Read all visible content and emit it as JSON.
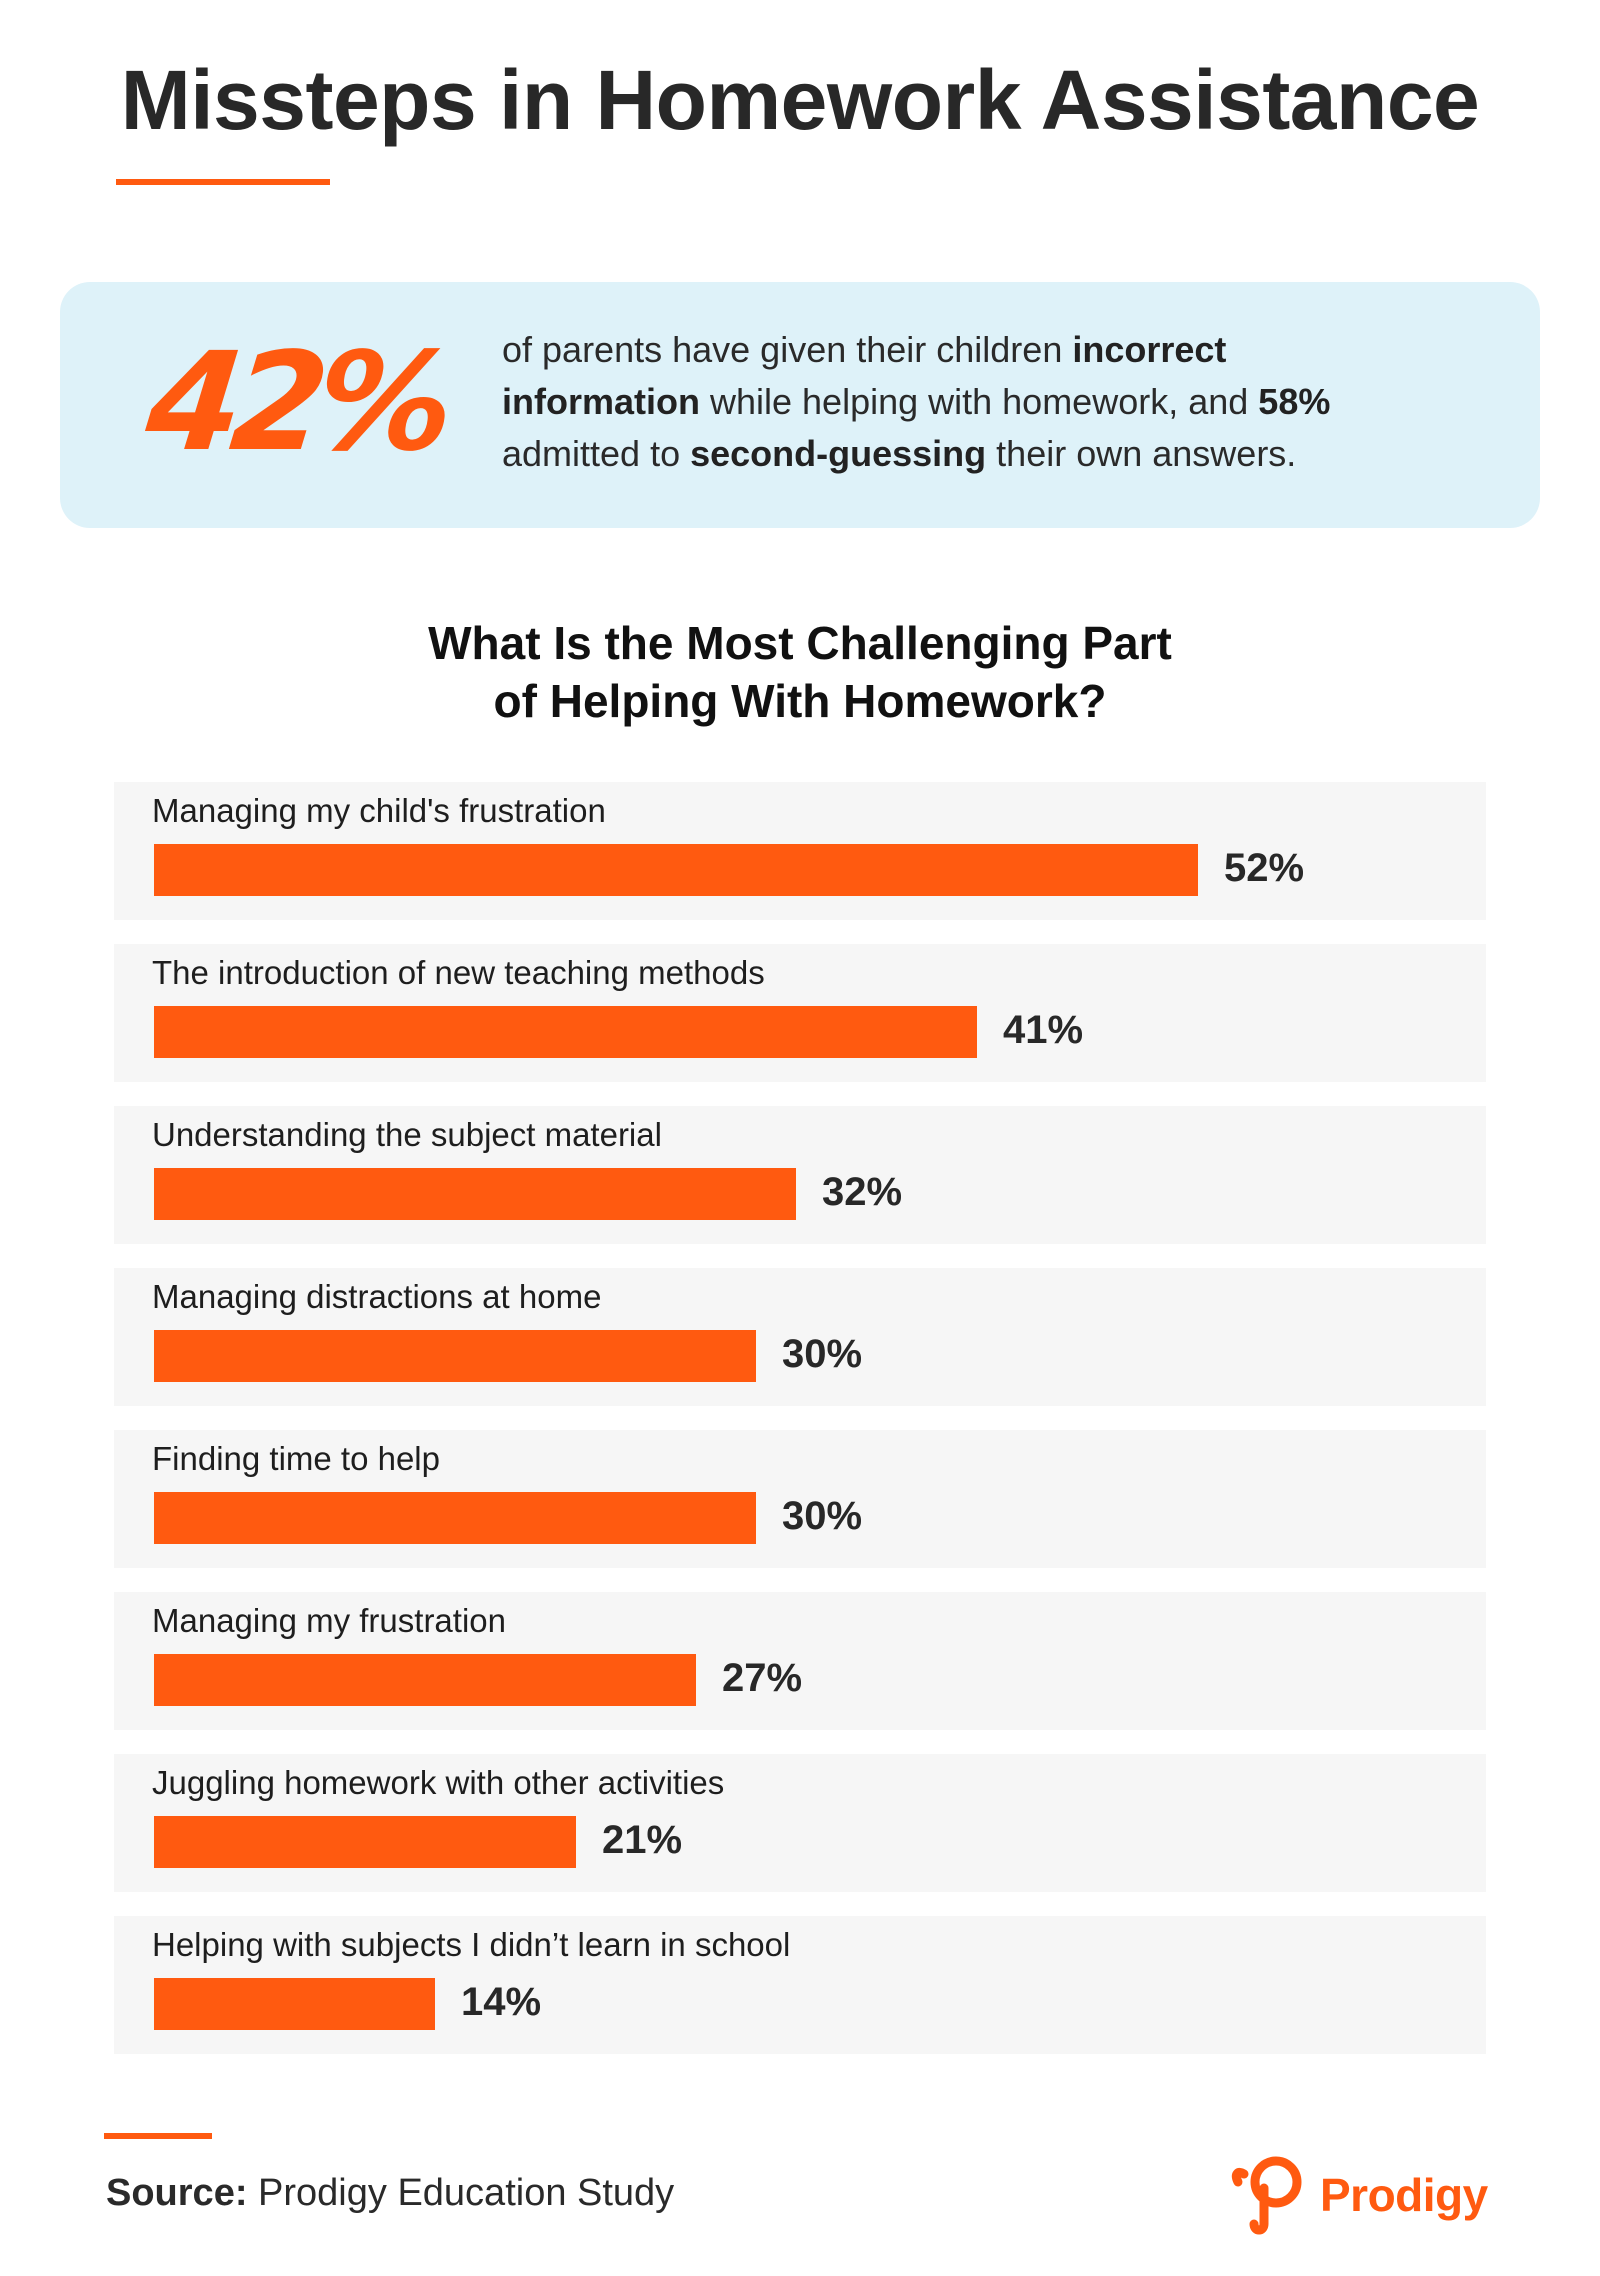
{
  "title": "Missteps in Homework Assistance",
  "callout": {
    "stat": "42%",
    "line1_a": "of parents have given their children ",
    "line1_b": "incorrect",
    "line2_a": "information",
    "line2_b": " while helping with homework, and ",
    "line2_c": "58%",
    "line3_a": "admitted to ",
    "line3_b": "second-guessing",
    "line3_c": " their own answers."
  },
  "colors": {
    "accent": "#ff5a10",
    "callout_bg": "#def2f9",
    "row_bg": "#f6f6f6",
    "text": "#282828"
  },
  "chart_data": {
    "type": "bar",
    "orientation": "horizontal",
    "title_line1": "What Is the Most Challenging Part",
    "title_line2": "of Helping With Homework?",
    "categories": [
      "Managing my child's frustration",
      "The introduction of new teaching methods",
      "Understanding the subject material",
      "Managing distractions at home",
      "Finding time to help",
      "Managing my frustration",
      "Juggling homework with other activities",
      "Helping with subjects I didn’t learn in school"
    ],
    "values": [
      52,
      41,
      32,
      30,
      30,
      27,
      21,
      14
    ],
    "value_labels": [
      "52%",
      "41%",
      "32%",
      "30%",
      "30%",
      "27%",
      "21%",
      "14%"
    ],
    "unit": "%",
    "xlim": [
      0,
      52
    ],
    "grid": false,
    "legend": "none"
  },
  "footer": {
    "source_label": "Source:",
    "source_text": " Prodigy Education Study",
    "brand_name": "Prodigy",
    "brand_icon": "prodigy-logo-icon"
  }
}
